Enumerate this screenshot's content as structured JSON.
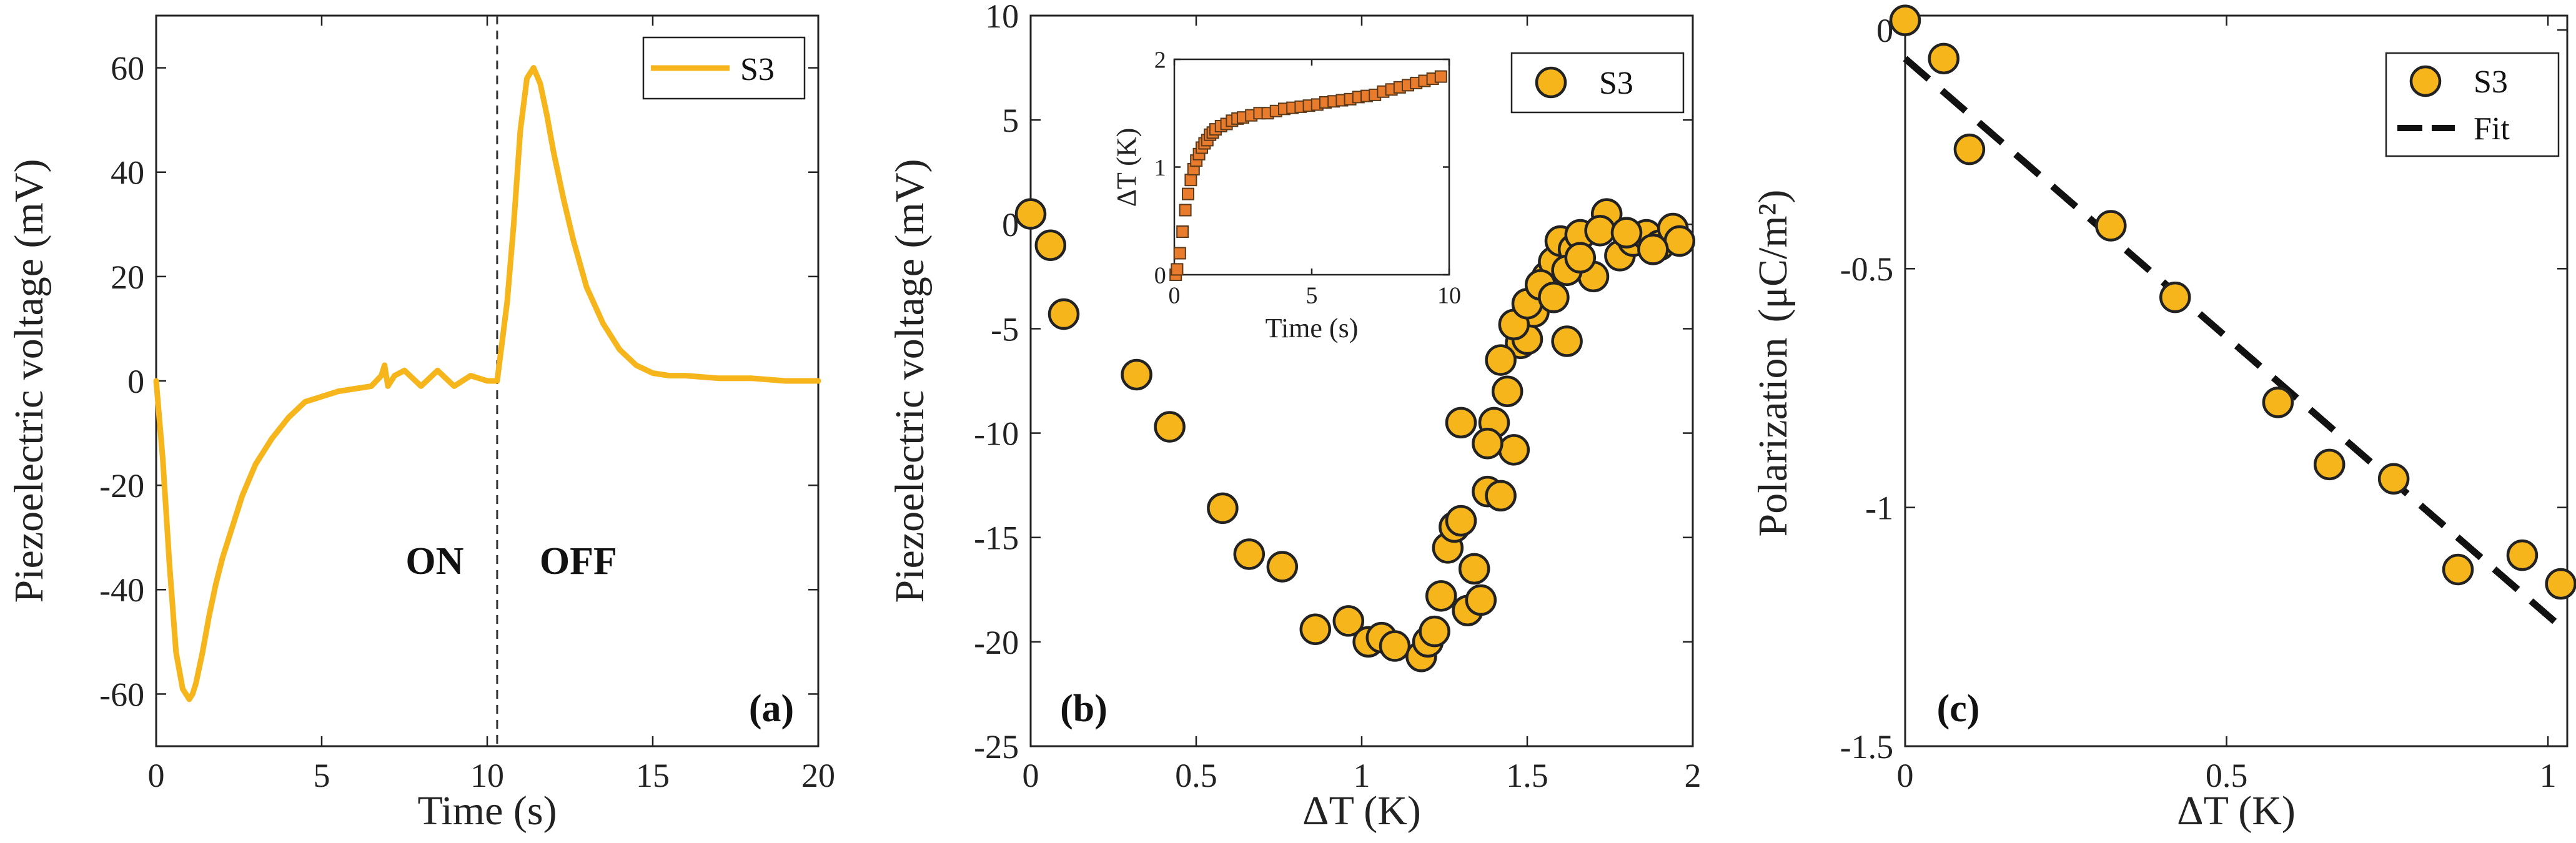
{
  "chart_data": [
    {
      "id": "a",
      "type": "line",
      "panel_label": "(a)",
      "xlabel": "Time (s)",
      "ylabel": "Piezoelectric voltage (mV)",
      "xlim": [
        0,
        20
      ],
      "ylim": [
        -70,
        70
      ],
      "xticks": [
        0,
        5,
        10,
        15,
        20
      ],
      "yticks": [
        -60,
        -40,
        -20,
        0,
        20,
        40,
        60
      ],
      "legend": "top-right",
      "annotations": {
        "on": "ON",
        "off": "OFF"
      },
      "switch_time": 10.3,
      "color": "#F5B51B",
      "series": [
        {
          "name": "S3",
          "x": [
            0,
            0.2,
            0.4,
            0.6,
            0.8,
            1.0,
            1.1,
            1.2,
            1.4,
            1.6,
            1.8,
            2.0,
            2.3,
            2.6,
            3.0,
            3.5,
            4.0,
            4.5,
            5.0,
            5.5,
            6.0,
            6.5,
            6.8,
            6.9,
            7.0,
            7.2,
            7.5,
            8.0,
            8.5,
            9.0,
            9.5,
            10.0,
            10.3,
            10.4,
            10.6,
            10.8,
            11.0,
            11.2,
            11.4,
            11.6,
            11.8,
            12.0,
            12.3,
            12.6,
            13.0,
            13.5,
            14.0,
            14.5,
            15.0,
            15.5,
            16.0,
            17.0,
            18.0,
            19.0,
            20.0
          ],
          "values": [
            0,
            -15,
            -35,
            -52,
            -59,
            -61,
            -60,
            -58,
            -52,
            -45,
            -39,
            -34,
            -28,
            -22,
            -16,
            -11,
            -7,
            -4,
            -3,
            -2,
            -1.5,
            -1,
            1,
            3,
            -1,
            1,
            2,
            -1,
            2,
            -1,
            1,
            0,
            0,
            5,
            15,
            30,
            48,
            58,
            60,
            57,
            51,
            44,
            35,
            27,
            18,
            11,
            6,
            3,
            1.5,
            1,
            1,
            0.5,
            0.5,
            0,
            0
          ]
        }
      ]
    },
    {
      "id": "b",
      "type": "scatter",
      "panel_label": "(b)",
      "xlabel": "ΔT (K)",
      "ylabel": "Piezoelectric voltage (mV)",
      "xlim": [
        0,
        2
      ],
      "ylim": [
        -25,
        10
      ],
      "xticks": [
        0,
        0.5,
        1,
        1.5,
        2
      ],
      "xticklabels": [
        "0",
        "0.5",
        "1",
        "1.5",
        "2"
      ],
      "yticks": [
        -25,
        -20,
        -15,
        -10,
        -5,
        0,
        5,
        10
      ],
      "legend": "top-right",
      "color": "#F5B51B",
      "series": [
        {
          "name": "S3",
          "x": [
            0.0,
            0.06,
            0.1,
            0.32,
            0.42,
            0.58,
            0.66,
            0.76,
            0.86,
            0.96,
            1.02,
            1.06,
            1.1,
            1.18,
            1.2,
            1.22,
            1.24,
            1.26,
            1.28,
            1.3,
            1.3,
            1.32,
            1.34,
            1.36,
            1.38,
            1.4,
            1.42,
            1.44,
            1.46,
            1.48,
            1.5,
            1.52,
            1.54,
            1.56,
            1.58,
            1.6,
            1.62,
            1.64,
            1.66,
            1.7,
            1.74,
            1.78,
            1.82,
            1.86,
            1.9,
            1.94,
            1.96,
            1.38,
            1.42,
            1.46,
            1.5,
            1.54,
            1.58,
            1.62,
            1.66,
            1.72,
            1.8,
            1.88
          ],
          "values": [
            0.5,
            -1,
            -4.3,
            -7.2,
            -9.7,
            -13.6,
            -15.8,
            -16.4,
            -19.4,
            -19,
            -20,
            -19.8,
            -20.2,
            -20.7,
            -20,
            -19.5,
            -17.8,
            -15.5,
            -14.5,
            -14.2,
            -9.5,
            -18.5,
            -16.5,
            -18,
            -12.8,
            -9.5,
            -13,
            -8,
            -10.8,
            -5.7,
            -5.5,
            -4.2,
            -3.2,
            -2.5,
            -1.8,
            -0.8,
            -5.6,
            -1.2,
            -0.5,
            -2.5,
            0.5,
            -1.5,
            -0.8,
            -0.5,
            -1,
            -0.2,
            -0.8,
            -10.5,
            -6.5,
            -4.8,
            -3.8,
            -2.9,
            -3.5,
            -2.2,
            -1.6,
            -0.3,
            -0.4,
            -1.2
          ]
        }
      ]
    },
    {
      "id": "b_inset",
      "type": "scatter",
      "xlabel": "Time (s)",
      "ylabel": "ΔT (K)",
      "xlim": [
        0,
        10
      ],
      "ylim": [
        0,
        2
      ],
      "xticks": [
        0,
        5,
        10
      ],
      "yticks": [
        0,
        1,
        2
      ],
      "color": "#E97B2C",
      "series": [
        {
          "name": "ΔT",
          "x": [
            0.05,
            0.1,
            0.2,
            0.3,
            0.4,
            0.5,
            0.6,
            0.7,
            0.8,
            0.9,
            1.0,
            1.1,
            1.2,
            1.3,
            1.4,
            1.5,
            1.7,
            1.9,
            2.1,
            2.3,
            2.5,
            2.8,
            3.1,
            3.4,
            3.7,
            4.0,
            4.3,
            4.6,
            4.9,
            5.2,
            5.5,
            5.8,
            6.1,
            6.4,
            6.7,
            7.0,
            7.3,
            7.6,
            7.9,
            8.2,
            8.5,
            8.8,
            9.1,
            9.4,
            9.7
          ],
          "values": [
            0.0,
            0.05,
            0.2,
            0.4,
            0.6,
            0.75,
            0.88,
            0.98,
            1.06,
            1.12,
            1.18,
            1.22,
            1.25,
            1.3,
            1.32,
            1.35,
            1.38,
            1.4,
            1.43,
            1.45,
            1.46,
            1.48,
            1.5,
            1.5,
            1.52,
            1.54,
            1.55,
            1.56,
            1.57,
            1.58,
            1.6,
            1.61,
            1.62,
            1.63,
            1.65,
            1.66,
            1.67,
            1.7,
            1.72,
            1.74,
            1.76,
            1.78,
            1.8,
            1.82,
            1.84
          ]
        }
      ]
    },
    {
      "id": "c",
      "type": "scatter",
      "panel_label": "(c)",
      "xlabel": "ΔT (K)",
      "ylabel": "Polarization",
      "ylabel_unit": "(μC/m²)",
      "xlim": [
        0,
        1.03
      ],
      "ylim": [
        -1.5,
        0.03
      ],
      "xticks": [
        0,
        0.5,
        1
      ],
      "yticks": [
        -1.5,
        -1,
        -0.5,
        0
      ],
      "legend": "top-right",
      "color": "#F5B51B",
      "series": [
        {
          "name": "S3",
          "x": [
            0.0,
            0.06,
            0.1,
            0.32,
            0.42,
            0.58,
            0.66,
            0.76,
            0.86,
            0.96,
            1.02
          ],
          "values": [
            0.02,
            -0.06,
            -0.25,
            -0.41,
            -0.56,
            -0.78,
            -0.91,
            -0.94,
            -1.13,
            -1.1,
            -1.16
          ]
        },
        {
          "name": "Fit",
          "x": [
            0.0,
            1.02
          ],
          "values": [
            -0.06,
            -1.25
          ]
        }
      ]
    }
  ]
}
